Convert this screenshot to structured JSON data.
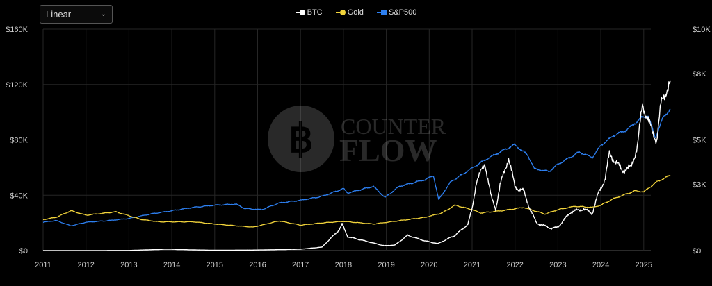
{
  "controls": {
    "scale_value": "Linear"
  },
  "colors": {
    "btc": "#ffffff",
    "gold": "#f2d43b",
    "sp500": "#2d7ff0",
    "grid": "#262626"
  },
  "watermark": {
    "line1": "COUNTER",
    "line2": "FLOW",
    "icon": "bitcoin-icon"
  },
  "chart_data": {
    "type": "line",
    "x_range": [
      2011.0,
      2025.65
    ],
    "x_ticks": [
      "2011",
      "2012",
      "2013",
      "2014",
      "2015",
      "2016",
      "2017",
      "2018",
      "2019",
      "2020",
      "2021",
      "2022",
      "2023",
      "2024",
      "2025"
    ],
    "left_axis": {
      "ylim": [
        0,
        160000
      ],
      "tick_values": [
        0,
        40000,
        80000,
        120000,
        160000
      ],
      "tick_labels": [
        "$0",
        "$40K",
        "$80K",
        "$120K",
        "$160K"
      ]
    },
    "right_axis": {
      "ylim": [
        0,
        10000
      ],
      "tick_values": [
        0,
        3000,
        5000,
        8000,
        10000
      ],
      "tick_labels": [
        "$0",
        "$3K",
        "$5K",
        "$8K",
        "$10K"
      ]
    },
    "grid": true,
    "legend_position": "top-center",
    "series": [
      {
        "name": "BTC",
        "axis": "left",
        "color": "#ffffff",
        "marker": "circle",
        "points": [
          [
            2011.0,
            0
          ],
          [
            2013.0,
            100
          ],
          [
            2013.9,
            1000
          ],
          [
            2014.5,
            500
          ],
          [
            2015.0,
            250
          ],
          [
            2016.0,
            400
          ],
          [
            2017.0,
            1000
          ],
          [
            2017.5,
            2500
          ],
          [
            2017.9,
            15000
          ],
          [
            2017.97,
            19000
          ],
          [
            2018.1,
            10000
          ],
          [
            2018.5,
            7000
          ],
          [
            2018.95,
            3500
          ],
          [
            2019.2,
            4000
          ],
          [
            2019.5,
            11000
          ],
          [
            2019.9,
            7000
          ],
          [
            2020.2,
            5000
          ],
          [
            2020.6,
            11000
          ],
          [
            2020.9,
            19000
          ],
          [
            2021.0,
            30000
          ],
          [
            2021.1,
            50000
          ],
          [
            2021.3,
            63000
          ],
          [
            2021.45,
            38000
          ],
          [
            2021.55,
            30000
          ],
          [
            2021.65,
            47000
          ],
          [
            2021.85,
            67000
          ],
          [
            2022.0,
            46000
          ],
          [
            2022.2,
            43000
          ],
          [
            2022.35,
            30000
          ],
          [
            2022.5,
            20000
          ],
          [
            2022.85,
            16000
          ],
          [
            2023.0,
            17000
          ],
          [
            2023.3,
            28000
          ],
          [
            2023.6,
            30000
          ],
          [
            2023.8,
            27000
          ],
          [
            2023.95,
            42000
          ],
          [
            2024.1,
            52000
          ],
          [
            2024.2,
            70000
          ],
          [
            2024.5,
            58000
          ],
          [
            2024.7,
            60000
          ],
          [
            2024.85,
            75000
          ],
          [
            2024.97,
            105000
          ],
          [
            2025.1,
            95000
          ],
          [
            2025.2,
            85000
          ],
          [
            2025.3,
            80000
          ],
          [
            2025.4,
            105000
          ],
          [
            2025.55,
            118000
          ],
          [
            2025.62,
            123000
          ]
        ]
      },
      {
        "name": "Gold",
        "axis": "right",
        "color": "#f2d43b",
        "marker": "line",
        "points": [
          [
            2011.0,
            1400
          ],
          [
            2011.3,
            1500
          ],
          [
            2011.65,
            1800
          ],
          [
            2012.0,
            1600
          ],
          [
            2012.7,
            1750
          ],
          [
            2013.3,
            1400
          ],
          [
            2013.7,
            1300
          ],
          [
            2014.5,
            1300
          ],
          [
            2015.0,
            1200
          ],
          [
            2015.9,
            1060
          ],
          [
            2016.5,
            1340
          ],
          [
            2017.0,
            1150
          ],
          [
            2017.5,
            1250
          ],
          [
            2018.0,
            1320
          ],
          [
            2018.7,
            1200
          ],
          [
            2019.5,
            1400
          ],
          [
            2019.9,
            1500
          ],
          [
            2020.3,
            1700
          ],
          [
            2020.6,
            2050
          ],
          [
            2021.0,
            1850
          ],
          [
            2021.2,
            1700
          ],
          [
            2021.7,
            1800
          ],
          [
            2022.2,
            1950
          ],
          [
            2022.7,
            1650
          ],
          [
            2023.0,
            1850
          ],
          [
            2023.4,
            2000
          ],
          [
            2023.8,
            1950
          ],
          [
            2024.0,
            2050
          ],
          [
            2024.3,
            2350
          ],
          [
            2024.8,
            2700
          ],
          [
            2025.0,
            2650
          ],
          [
            2025.3,
            3100
          ],
          [
            2025.62,
            3400
          ]
        ]
      },
      {
        "name": "S&P500",
        "axis": "right",
        "color": "#2d7ff0",
        "marker": "square",
        "points": [
          [
            2011.0,
            1280
          ],
          [
            2011.3,
            1360
          ],
          [
            2011.65,
            1120
          ],
          [
            2012.0,
            1280
          ],
          [
            2012.5,
            1350
          ],
          [
            2013.0,
            1450
          ],
          [
            2013.5,
            1650
          ],
          [
            2014.0,
            1800
          ],
          [
            2014.5,
            1950
          ],
          [
            2015.0,
            2050
          ],
          [
            2015.5,
            2100
          ],
          [
            2015.7,
            1900
          ],
          [
            2016.1,
            1850
          ],
          [
            2016.5,
            2150
          ],
          [
            2017.0,
            2270
          ],
          [
            2017.5,
            2450
          ],
          [
            2018.0,
            2800
          ],
          [
            2018.1,
            2600
          ],
          [
            2018.7,
            2900
          ],
          [
            2018.97,
            2400
          ],
          [
            2019.3,
            2900
          ],
          [
            2019.9,
            3200
          ],
          [
            2020.1,
            3380
          ],
          [
            2020.22,
            2300
          ],
          [
            2020.5,
            3100
          ],
          [
            2020.9,
            3600
          ],
          [
            2021.3,
            4100
          ],
          [
            2021.7,
            4500
          ],
          [
            2021.99,
            4780
          ],
          [
            2022.3,
            4300
          ],
          [
            2022.45,
            3700
          ],
          [
            2022.7,
            3600
          ],
          [
            2022.8,
            3580
          ],
          [
            2023.0,
            3900
          ],
          [
            2023.5,
            4450
          ],
          [
            2023.8,
            4200
          ],
          [
            2024.0,
            4750
          ],
          [
            2024.3,
            5200
          ],
          [
            2024.6,
            5450
          ],
          [
            2024.95,
            6000
          ],
          [
            2025.1,
            6100
          ],
          [
            2025.27,
            5100
          ],
          [
            2025.45,
            6000
          ],
          [
            2025.62,
            6400
          ]
        ]
      }
    ]
  }
}
